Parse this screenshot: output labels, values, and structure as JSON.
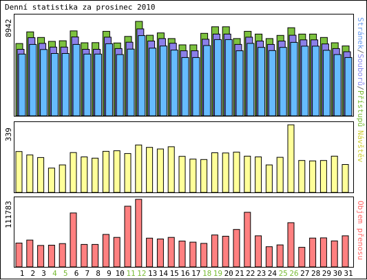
{
  "chart_data": {
    "type": "bar",
    "title": "Denní statistika za prosinec 2010",
    "categories": [
      "1",
      "2",
      "3",
      "4",
      "5",
      "6",
      "7",
      "8",
      "9",
      "10",
      "11",
      "12",
      "13",
      "14",
      "15",
      "16",
      "17",
      "18",
      "19",
      "20",
      "21",
      "22",
      "23",
      "24",
      "25",
      "26",
      "27",
      "28",
      "29",
      "30",
      "31"
    ],
    "weekend_days": [
      "4",
      "5",
      "11",
      "12",
      "18",
      "19",
      "25",
      "26"
    ],
    "panels": [
      {
        "name": "traffic",
        "ymax_label": "8942",
        "right_label_parts": [
          {
            "text": "Stránek",
            "color": "#6699ee"
          },
          {
            "text": "/",
            "color": "#666666"
          },
          {
            "text": "Souborů",
            "color": "#8888ee"
          },
          {
            "text": "/",
            "color": "#666666"
          },
          {
            "text": "Přístupů",
            "color": "#77bb33"
          }
        ],
        "ymax": 8942,
        "series": [
          {
            "name": "Přístupů",
            "color": "#7dc23f",
            "values": [
              6850,
              7950,
              7420,
              7050,
              7110,
              8040,
              6920,
              6930,
              8000,
              6900,
              7520,
              8942,
              7630,
              7850,
              7320,
              6720,
              6720,
              7810,
              8430,
              8430,
              7320,
              8000,
              7740,
              7320,
              7620,
              8340,
              7740,
              7740,
              7420,
              6920,
              6620
            ]
          },
          {
            "name": "Souborů",
            "color": "#8b7fe9",
            "values": [
              6300,
              7400,
              6860,
              6510,
              6510,
              7470,
              6300,
              6300,
              7450,
              6370,
              6970,
              8230,
              7080,
              7320,
              6870,
              6160,
              6160,
              7250,
              7740,
              7740,
              6760,
              7450,
              7080,
              6760,
              7080,
              7630,
              7190,
              7190,
              6810,
              6370,
              6070
            ]
          },
          {
            "name": "Stránek",
            "color": "#66bbff",
            "values": [
              5850,
              6760,
              6280,
              5910,
              5910,
              6760,
              5850,
              5850,
              6830,
              5800,
              6320,
              7600,
              6410,
              6610,
              6230,
              5520,
              5520,
              6660,
              7220,
              7220,
              6160,
              6860,
              6480,
              6180,
              6480,
              6960,
              6600,
              6600,
              6210,
              5800,
              5520
            ]
          }
        ]
      },
      {
        "name": "visits",
        "ymax_label": "339",
        "right_label_parts": [
          {
            "text": "Návštěv",
            "color": "#cccc33"
          }
        ],
        "ymax": 339,
        "series": [
          {
            "name": "Návštěv",
            "color": "#ffff99",
            "values": [
              205,
              188,
              175,
              122,
              138,
              200,
              178,
              172,
              206,
              209,
              195,
              238,
              226,
              218,
              229,
              181,
              167,
              165,
              199,
              198,
              202,
              182,
              178,
              138,
              176,
              339,
              160,
              158,
              160,
              182,
              140
            ]
          }
        ]
      },
      {
        "name": "transfer",
        "ymax_label": "111783",
        "right_label_parts": [
          {
            "text": "Objem přenosu",
            "color": "#ff6666"
          }
        ],
        "ymax": 111783,
        "series": [
          {
            "name": "Objem přenosu",
            "color": "#ff8080",
            "values": [
              39500,
              44400,
              35500,
              35900,
              38500,
              89200,
              37200,
              37200,
              53700,
              48800,
              100400,
              111783,
              47600,
              46200,
              48800,
              42800,
              41000,
              38900,
              52800,
              50800,
              61900,
              90300,
              51500,
              33400,
              36400,
              73100,
              32400,
              47700,
              48000,
              43000,
              51500
            ]
          }
        ]
      }
    ]
  }
}
